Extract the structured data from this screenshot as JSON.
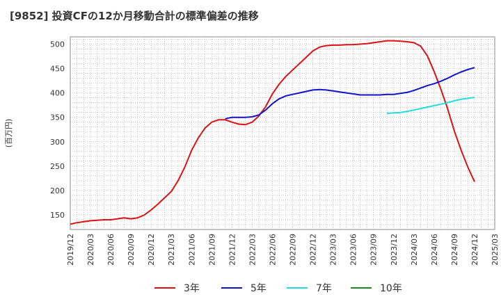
{
  "chart_data": {
    "type": "line",
    "title": "[9852]  投資CFの12か月移動合計の標準偏差の推移",
    "ylabel": "(百万円)",
    "xlabel": "",
    "ylim": [
      120,
      515
    ],
    "y_ticks": [
      150,
      200,
      250,
      300,
      350,
      400,
      450,
      500
    ],
    "x_ticks": [
      "2019/12",
      "2020/03",
      "2020/06",
      "2020/09",
      "2020/12",
      "2021/03",
      "2021/06",
      "2021/09",
      "2021/12",
      "2022/03",
      "2022/06",
      "2022/09",
      "2022/12",
      "2023/03",
      "2023/06",
      "2023/09",
      "2023/12",
      "2024/03",
      "2024/06",
      "2024/09",
      "2024/12",
      "2025/03"
    ],
    "grid": true,
    "legend_position": "bottom",
    "series": [
      {
        "name": "3年",
        "color": "#dd1111",
        "x": [
          "2019/12",
          "2020/01",
          "2020/02",
          "2020/03",
          "2020/04",
          "2020/05",
          "2020/06",
          "2020/07",
          "2020/08",
          "2020/09",
          "2020/10",
          "2020/11",
          "2020/12",
          "2021/01",
          "2021/02",
          "2021/03",
          "2021/04",
          "2021/05",
          "2021/06",
          "2021/07",
          "2021/08",
          "2021/09",
          "2021/10",
          "2021/11",
          "2021/12",
          "2022/01",
          "2022/02",
          "2022/03",
          "2022/04",
          "2022/05",
          "2022/06",
          "2022/07",
          "2022/08",
          "2022/09",
          "2022/10",
          "2022/11",
          "2022/12",
          "2023/01",
          "2023/02",
          "2023/03",
          "2023/04",
          "2023/05",
          "2023/06",
          "2023/07",
          "2023/08",
          "2023/09",
          "2023/10",
          "2023/11",
          "2023/12",
          "2024/01",
          "2024/02",
          "2024/03",
          "2024/04",
          "2024/05",
          "2024/06",
          "2024/07",
          "2024/08",
          "2024/09",
          "2024/10",
          "2024/11",
          "2024/12"
        ],
        "values": [
          131,
          134,
          136,
          138,
          139,
          140,
          140,
          142,
          144,
          142,
          144,
          150,
          160,
          172,
          185,
          198,
          220,
          248,
          282,
          308,
          328,
          340,
          345,
          345,
          340,
          336,
          335,
          340,
          353,
          372,
          398,
          418,
          434,
          447,
          460,
          473,
          486,
          494,
          497,
          498,
          498,
          499,
          499,
          500,
          501,
          503,
          505,
          507,
          507,
          506,
          505,
          503,
          496,
          476,
          444,
          408,
          368,
          322,
          283,
          248,
          218
        ]
      },
      {
        "name": "5年",
        "color": "#1111cc",
        "x": [
          "2021/11",
          "2021/12",
          "2022/01",
          "2022/02",
          "2022/03",
          "2022/04",
          "2022/05",
          "2022/06",
          "2022/07",
          "2022/08",
          "2022/09",
          "2022/10",
          "2022/11",
          "2022/12",
          "2023/01",
          "2023/02",
          "2023/03",
          "2023/04",
          "2023/05",
          "2023/06",
          "2023/07",
          "2023/08",
          "2023/09",
          "2023/10",
          "2023/11",
          "2023/12",
          "2024/01",
          "2024/02",
          "2024/03",
          "2024/04",
          "2024/05",
          "2024/06",
          "2024/07",
          "2024/08",
          "2024/09",
          "2024/10",
          "2024/11",
          "2024/12"
        ],
        "values": [
          347,
          350,
          350,
          350,
          351,
          355,
          365,
          378,
          388,
          394,
          397,
          400,
          403,
          406,
          407,
          406,
          404,
          402,
          400,
          398,
          396,
          396,
          396,
          396,
          397,
          397,
          399,
          401,
          405,
          410,
          415,
          419,
          424,
          430,
          437,
          443,
          448,
          452
        ]
      },
      {
        "name": "7年",
        "color": "#22dddd",
        "x": [
          "2023/11",
          "2023/12",
          "2024/01",
          "2024/02",
          "2024/03",
          "2024/04",
          "2024/05",
          "2024/06",
          "2024/07",
          "2024/08",
          "2024/09",
          "2024/10",
          "2024/11",
          "2024/12"
        ],
        "values": [
          358,
          359,
          360,
          362,
          365,
          368,
          371,
          374,
          377,
          380,
          384,
          387,
          389,
          391
        ]
      },
      {
        "name": "10年",
        "color": "#228822",
        "x": [],
        "values": []
      }
    ]
  }
}
